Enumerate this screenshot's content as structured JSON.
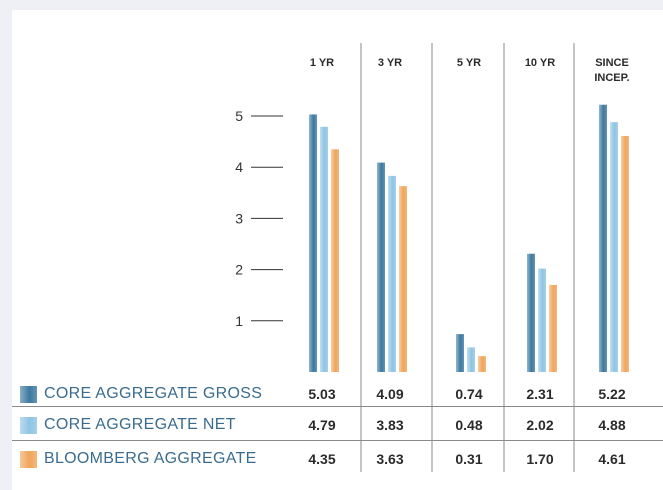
{
  "colors": {
    "gross": "#3d79a0",
    "net": "#8ec4e4",
    "bloomberg": "#f0a55a",
    "legend_text": "#3a6c8f",
    "rule": "#8a8a8a"
  },
  "chart_data": {
    "type": "bar",
    "categories": [
      "1 YR",
      "3 YR",
      "5 YR",
      "10 YR",
      "SINCE INCEP."
    ],
    "category_lines": [
      [
        "1 YR"
      ],
      [
        "3 YR"
      ],
      [
        "5 YR"
      ],
      [
        "10 YR"
      ],
      [
        "SINCE",
        "INCEP."
      ]
    ],
    "y_ticks": [
      1,
      2,
      3,
      4,
      5
    ],
    "ylim": [
      0,
      5.3
    ],
    "series": [
      {
        "name": "CORE AGGREGATE GROSS",
        "color": "#3d79a0",
        "values": [
          5.03,
          4.09,
          0.74,
          2.31,
          5.22
        ],
        "labels": [
          "5.03",
          "4.09",
          "0.74",
          "2.31",
          "5.22"
        ]
      },
      {
        "name": "CORE AGGREGATE NET",
        "color": "#8ec4e4",
        "values": [
          4.79,
          3.83,
          0.48,
          2.02,
          4.88
        ],
        "labels": [
          "4.79",
          "3.83",
          "0.48",
          "2.02",
          "4.88"
        ]
      },
      {
        "name": "BLOOMBERG AGGREGATE",
        "color": "#f0a55a",
        "values": [
          4.35,
          3.63,
          0.31,
          1.7,
          4.61
        ],
        "labels": [
          "4.35",
          "3.63",
          "0.31",
          "1.70",
          "4.61"
        ]
      }
    ]
  }
}
